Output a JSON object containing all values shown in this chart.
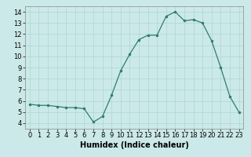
{
  "x": [
    0,
    1,
    2,
    3,
    4,
    5,
    6,
    7,
    8,
    9,
    10,
    11,
    12,
    13,
    14,
    15,
    16,
    17,
    18,
    19,
    20,
    21,
    22,
    23
  ],
  "y": [
    5.7,
    5.6,
    5.6,
    5.5,
    5.4,
    5.4,
    5.3,
    4.1,
    4.6,
    6.5,
    8.7,
    10.2,
    11.5,
    11.9,
    11.9,
    13.6,
    14.0,
    13.2,
    13.3,
    13.0,
    11.4,
    9.0,
    6.4,
    5.0
  ],
  "line_color": "#2e7d6e",
  "marker": ".",
  "marker_size": 3,
  "bg_color": "#cce9e9",
  "grid_color": "#add4d4",
  "xlabel": "Humidex (Indice chaleur)",
  "xlabel_fontsize": 7,
  "xlabel_bold": true,
  "tick_fontsize": 6,
  "ylim": [
    3.5,
    14.5
  ],
  "xlim": [
    -0.5,
    23.5
  ],
  "yticks": [
    4,
    5,
    6,
    7,
    8,
    9,
    10,
    11,
    12,
    13,
    14
  ],
  "xticks": [
    0,
    1,
    2,
    3,
    4,
    5,
    6,
    7,
    8,
    9,
    10,
    11,
    12,
    13,
    14,
    15,
    16,
    17,
    18,
    19,
    20,
    21,
    22,
    23
  ]
}
